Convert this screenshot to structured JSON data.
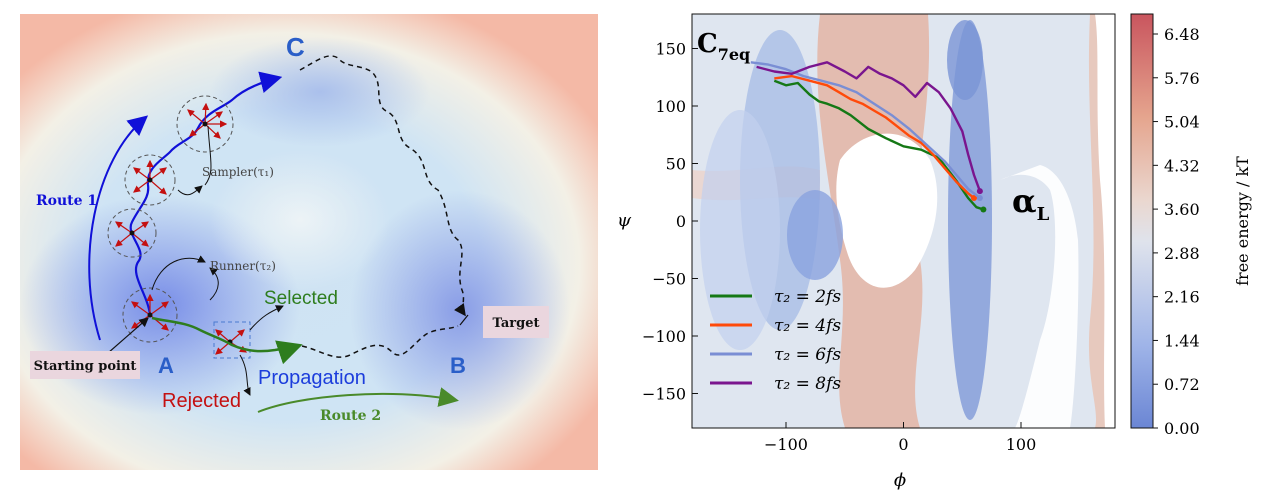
{
  "diagram": {
    "labels": {
      "C": "C",
      "A": "A",
      "B": "B",
      "route1": "Route 1",
      "route2": "Route 2",
      "sampler": "Sampler(τ₁)",
      "runner": "Runner(τ₂)",
      "selected": "Selected",
      "propagation": "Propagation",
      "rejected": "Rejected",
      "starting_point": "Starting point",
      "target": "Target"
    },
    "colors": {
      "route1": "#1010d8",
      "route2": "#4a8a2a",
      "selected": "#2e7d1e",
      "rejected": "#c41010",
      "abc": "#2a5ec8",
      "label_box": "#ead6de"
    }
  },
  "chart_data": {
    "type": "heatmap",
    "xlabel": "ϕ",
    "ylabel": "ψ",
    "xlim": [
      -180,
      180
    ],
    "ylim": [
      -180,
      180
    ],
    "xticks": [
      -100,
      0,
      100
    ],
    "yticks": [
      -150,
      -100,
      -50,
      0,
      50,
      100,
      150
    ],
    "colorbar": {
      "label": "free energy / kT",
      "range": [
        0.0,
        6.48
      ],
      "ticks": [
        "0.00",
        "0.72",
        "1.44",
        "2.16",
        "2.88",
        "3.60",
        "4.32",
        "5.04",
        "5.76",
        "6.48"
      ]
    },
    "annotations": [
      {
        "text": "C",
        "sub": "7eq",
        "x": -170,
        "y": 150
      },
      {
        "text": "α",
        "sub": "L",
        "x": 100,
        "y": 10
      }
    ],
    "legend_position": "lower-left",
    "series": [
      {
        "name": "τ₂ = 2fs",
        "color": "#157815",
        "x": [
          -110,
          -100,
          -90,
          -80,
          -72,
          -65,
          -55,
          -45,
          -30,
          -15,
          0,
          15,
          30,
          45,
          55,
          62,
          68
        ],
        "y": [
          122,
          118,
          120,
          110,
          104,
          102,
          98,
          92,
          80,
          72,
          65,
          62,
          55,
          35,
          20,
          12,
          10
        ]
      },
      {
        "name": "τ₂ = 4fs",
        "color": "#ff4a0a",
        "x": [
          -110,
          -95,
          -80,
          -65,
          -55,
          -45,
          -35,
          -25,
          -15,
          -5,
          5,
          15,
          25,
          35,
          45,
          55,
          60
        ],
        "y": [
          124,
          126,
          122,
          118,
          112,
          106,
          102,
          96,
          90,
          82,
          74,
          68,
          58,
          46,
          34,
          24,
          20
        ]
      },
      {
        "name": "τ₂ = 6fs",
        "color": "#7a8ed4",
        "x": [
          -130,
          -115,
          -100,
          -85,
          -70,
          -55,
          -40,
          -25,
          -10,
          5,
          20,
          35,
          45,
          55,
          65
        ],
        "y": [
          138,
          136,
          132,
          126,
          122,
          118,
          112,
          102,
          92,
          80,
          66,
          52,
          40,
          28,
          20
        ]
      },
      {
        "name": "τ₂ = 8fs",
        "color": "#7a158e",
        "x": [
          -125,
          -110,
          -95,
          -80,
          -65,
          -50,
          -40,
          -30,
          -20,
          -10,
          0,
          10,
          20,
          30,
          40,
          50,
          55,
          60,
          65
        ],
        "y": [
          134,
          130,
          128,
          134,
          138,
          130,
          124,
          134,
          128,
          124,
          118,
          108,
          120,
          112,
          98,
          78,
          58,
          40,
          26
        ]
      }
    ]
  }
}
